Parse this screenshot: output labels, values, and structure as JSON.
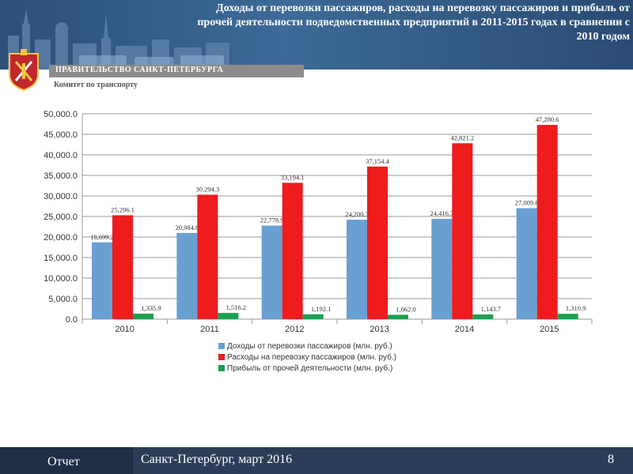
{
  "header": {
    "title": "Доходы от перевозки пассажиров, расходы на перевозку пассажиров и прибыль от прочей деятельности подведомственных предприятий  в 2011-2015 годах в сравнении с 2010 годом",
    "government": "ПРАВИТЕЛЬСТВО САНКТ-ПЕТЕРБУРГА",
    "committee": "Комитет по транспорту"
  },
  "footer": {
    "report": "Отчет",
    "city_date": "Санкт-Петербург, март 2016",
    "page": "8"
  },
  "colors": {
    "income": "#6a9fd2",
    "expenses": "#ee1c1c",
    "profit": "#1aa052",
    "header_bg": "#2f5783",
    "footer_bg": "#2c3e57"
  },
  "chart_data": {
    "type": "bar",
    "categories": [
      "2010",
      "2011",
      "2012",
      "2013",
      "2014",
      "2015"
    ],
    "series": [
      {
        "name": "Доходы от перевозки пассажиров (млн. руб.)",
        "values": [
          18699.2,
          20984.6,
          22778.9,
          24200.3,
          24416.7,
          27009.6
        ],
        "labels": [
          "18,699.2",
          "20,984.6",
          "22,778.9",
          "24,200.3",
          "24,416.7",
          "27,009.6"
        ]
      },
      {
        "name": "Расходы на перевозку пассажиров (млн. руб.)",
        "values": [
          25296.1,
          30294.3,
          33194.1,
          37154.4,
          42821.2,
          47280.6
        ],
        "labels": [
          "25,296.1",
          "30,294.3",
          "33,194.1",
          "37,154.4",
          "42,821.2",
          "47,280.6"
        ]
      },
      {
        "name": "Прибыль от прочей деятельности (млн. руб.)",
        "values": [
          1335.9,
          1516.2,
          1192.1,
          1062.0,
          1143.7,
          1310.9
        ],
        "labels": [
          "1,335.9",
          "1,516.2",
          "1,192.1",
          "1,062.0",
          "1,143.7",
          "1,310.9"
        ]
      }
    ],
    "yticks": [
      "0.0",
      "5,000.0",
      "10,000.0",
      "15,000.0",
      "20,000.0",
      "25,000.0",
      "30,000.0",
      "35,000.0",
      "40,000.0",
      "45,000.0",
      "50,000.0"
    ],
    "ylim": [
      0,
      50000
    ],
    "grid": true,
    "legend": "bottom"
  }
}
